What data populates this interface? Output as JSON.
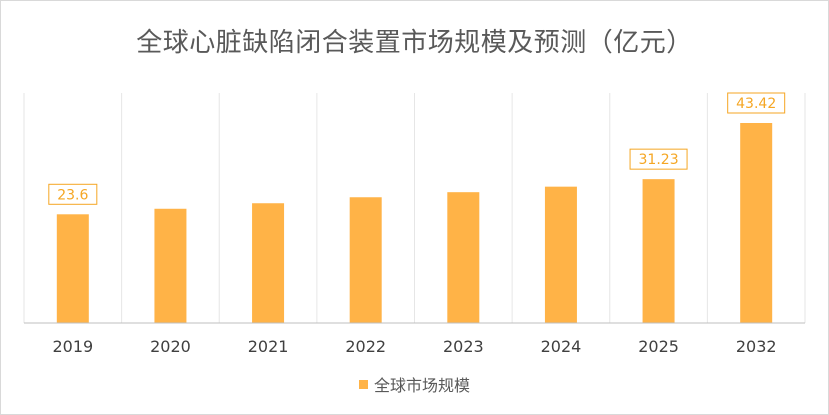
{
  "chart_data": {
    "type": "bar",
    "title": "全球心脏缺陷闭合装置市场规模及预测（亿元）",
    "categories": [
      "2019",
      "2020",
      "2021",
      "2022",
      "2023",
      "2024",
      "2025",
      "2032"
    ],
    "series": [
      {
        "name": "全球市场规模",
        "values": [
          23.6,
          24.8,
          26.0,
          27.3,
          28.4,
          29.6,
          31.23,
          43.42
        ],
        "data_labels": [
          "23.6",
          "",
          "",
          "",
          "",
          "",
          "31.23",
          "43.42"
        ]
      }
    ],
    "ylim": [
      0,
      43.42
    ],
    "grid": "vertical",
    "legend_position": "bottom",
    "bar_color": "#ffb347",
    "label_color": "#f5a623"
  }
}
